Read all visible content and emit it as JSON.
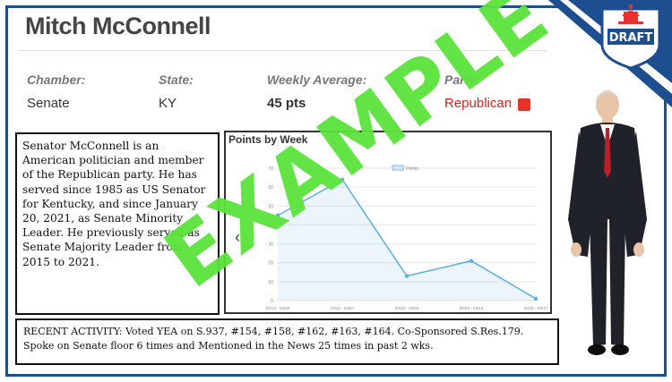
{
  "badge": {
    "label": "DRAFT"
  },
  "profile": {
    "name": "Mitch McConnell",
    "chamber_label": "Chamber:",
    "chamber": "Senate",
    "state_label": "State:",
    "state": "KY",
    "weekly_label": "Weekly Average:",
    "weekly": "45 pts",
    "party_label": "Party:",
    "party": "Republican"
  },
  "bio": "Senator McConnell is an American politician and member of the Republican party. He has served since 1985 as US Senator for Kentucky, and since January 20, 2021, as Senate Minority Leader. He previously served as Senate Majority Leader from 2015 to 2021.",
  "nav": {
    "prev_icon": "chevron-left-icon"
  },
  "chart_data": {
    "type": "line",
    "title": "Points by Week",
    "legend": "Points",
    "legend_position": "top-center",
    "categories": [
      "03/14 - 03/20",
      "03/21 - 03/27",
      "03/28 - 04/03",
      "04/04 - 04/10",
      "04/11 - 04/17"
    ],
    "values": [
      45,
      64,
      13,
      21,
      1
    ],
    "ylim": [
      0,
      70
    ],
    "yticks": [
      0,
      10,
      20,
      30,
      40,
      50,
      60,
      70
    ],
    "grid": true,
    "color": "#5aaee0"
  },
  "activity": "RECENT ACTIVITY: Voted YEA on S.937, #154, #158, #162, #163, #164. Co-Sponsored S.Res.179. Spoke on Senate floor 6 times and Mentioned in the News 25 times in past 2 wks.",
  "watermark": "EXAMPLE",
  "colors": {
    "frame": "#1d4e8f",
    "accent_red": "#d9231f",
    "watermark": "#5be33b"
  }
}
